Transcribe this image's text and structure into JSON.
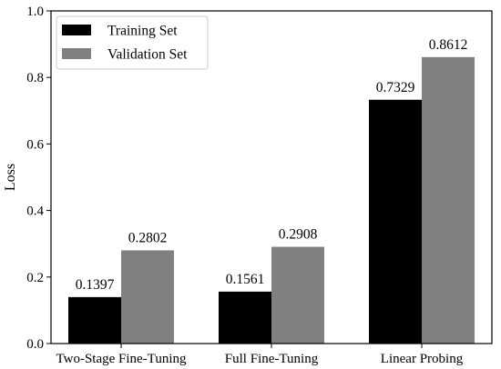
{
  "chart_data": {
    "type": "bar",
    "title": "",
    "xlabel": "",
    "ylabel": "Loss",
    "ylim": [
      0,
      1.0
    ],
    "yticks": [
      0.0,
      0.2,
      0.4,
      0.6,
      0.8,
      1.0
    ],
    "ytick_labels": [
      "0.0",
      "0.2",
      "0.4",
      "0.6",
      "0.8",
      "1.0"
    ],
    "categories": [
      "Two-Stage Fine-Tuning",
      "Full Fine-Tuning",
      "Linear Probing"
    ],
    "series": [
      {
        "name": "Training Set",
        "color": "#000000",
        "values": [
          0.1397,
          0.1561,
          0.7329
        ],
        "value_labels": [
          "0.1397",
          "0.1561",
          "0.7329"
        ]
      },
      {
        "name": "Validation Set",
        "color": "#808080",
        "values": [
          0.2802,
          0.2908,
          0.8612
        ],
        "value_labels": [
          "0.2802",
          "0.2908",
          "0.8612"
        ]
      }
    ],
    "grid": false,
    "legend_position": "top-left"
  }
}
